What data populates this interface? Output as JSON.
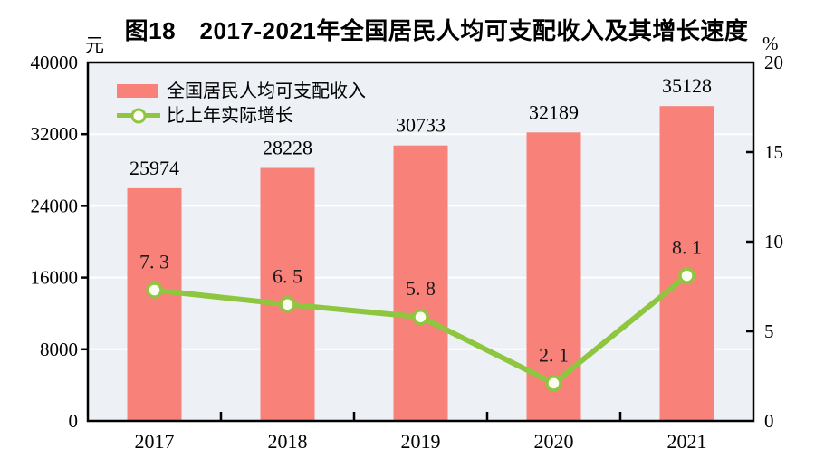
{
  "title": "图18　2017-2021年全国居民人均可支配收入及其增长速度",
  "chart_data": {
    "type": "bar",
    "title": "图18　2017-2021年全国居民人均可支配收入及其增长速度",
    "categories": [
      "2017",
      "2018",
      "2019",
      "2020",
      "2021"
    ],
    "series": [
      {
        "name": "全国居民人均可支配收入",
        "type": "bar",
        "axis": "left",
        "values": [
          25974,
          28228,
          30733,
          32189,
          35128
        ],
        "color": "#F8817A"
      },
      {
        "name": "比上年实际增长",
        "type": "line",
        "axis": "right",
        "values": [
          7.3,
          6.5,
          5.8,
          2.1,
          8.1
        ],
        "color": "#8FC63F",
        "marker": "open-circle",
        "marker_fill": "#FDFDF2"
      }
    ],
    "left_axis": {
      "unit": "元",
      "ticks": [
        0,
        8000,
        16000,
        24000,
        32000,
        40000
      ],
      "range": [
        0,
        40000
      ]
    },
    "right_axis": {
      "unit": "%",
      "ticks": [
        0,
        5,
        10,
        15,
        20
      ],
      "range": [
        0,
        20
      ]
    },
    "grid": "horizontal white gridlines at left-axis ticks",
    "legend_position": "top-left inside plot",
    "plot_background": "#EDF1F5",
    "axis_color": "#000000",
    "label_color": "#1B1B1B"
  }
}
